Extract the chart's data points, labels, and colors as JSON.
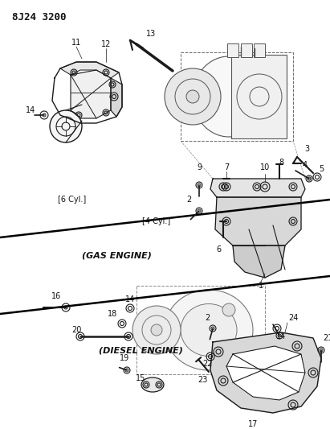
{
  "title": "8J24 3200",
  "bg_color": "#ffffff",
  "line_color": "#1a1a1a",
  "text_color": "#111111",
  "figsize": [
    4.11,
    5.33
  ],
  "dpi": 100,
  "labels": {
    "header": "8J24 3200",
    "gas_engine": "(GAS ENGINE)",
    "diesel_engine": "(DIESEL ENGINE)",
    "six_cyl": "[6 Cyl.]",
    "four_cyl": "[4 Cyl.]"
  }
}
